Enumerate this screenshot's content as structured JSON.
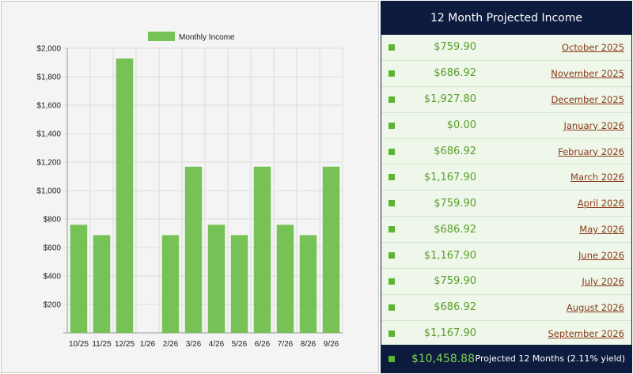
{
  "chart_data": {
    "type": "bar",
    "categories": [
      "10/25",
      "11/25",
      "12/25",
      "1/26",
      "2/26",
      "3/26",
      "4/26",
      "5/26",
      "6/26",
      "7/26",
      "8/26",
      "9/26"
    ],
    "series": [
      {
        "name": "Monthly Income",
        "values": [
          759.9,
          686.92,
          1927.8,
          0.0,
          686.92,
          1167.9,
          759.9,
          686.92,
          1167.9,
          759.9,
          686.92,
          1167.9
        ]
      }
    ],
    "yticks": [
      "$200",
      "$400",
      "$600",
      "$800",
      "$1,000",
      "$1,200",
      "$1,400",
      "$1,600",
      "$1,800",
      "$2,000"
    ],
    "ylim": [
      0,
      2000
    ],
    "grid": true,
    "legend": "top-center",
    "bar_color": "#77c257"
  },
  "table": {
    "title": "12 Month Projected Income",
    "rows": [
      {
        "amount": "$759.90",
        "month": "October 2025"
      },
      {
        "amount": "$686.92",
        "month": "November 2025"
      },
      {
        "amount": "$1,927.80",
        "month": "December 2025"
      },
      {
        "amount": "$0.00",
        "month": "January 2026"
      },
      {
        "amount": "$686.92",
        "month": "February 2026"
      },
      {
        "amount": "$1,167.90",
        "month": "March 2026"
      },
      {
        "amount": "$759.90",
        "month": "April 2026"
      },
      {
        "amount": "$686.92",
        "month": "May 2026"
      },
      {
        "amount": "$1,167.90",
        "month": "June 2026"
      },
      {
        "amount": "$759.90",
        "month": "July 2026"
      },
      {
        "amount": "$686.92",
        "month": "August 2026"
      },
      {
        "amount": "$1,167.90",
        "month": "September 2026"
      }
    ],
    "total": {
      "amount": "$10,458.88",
      "label": "Projected 12 Months (2.11% yield)"
    }
  },
  "colors": {
    "header": "#0d1b3e",
    "accent_green": "#5cb531",
    "amount_green": "#5a9e2f",
    "month_link": "#8b3a1a",
    "table_bg": "#eef7e9"
  }
}
